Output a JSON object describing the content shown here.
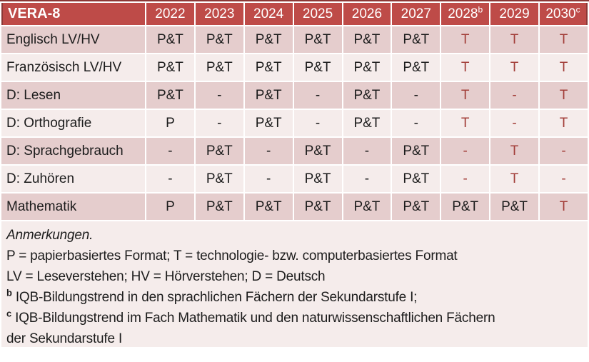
{
  "table": {
    "title": "VERA-8",
    "columns": [
      {
        "label": "2022",
        "sup": ""
      },
      {
        "label": "2023",
        "sup": ""
      },
      {
        "label": "2024",
        "sup": ""
      },
      {
        "label": "2025",
        "sup": ""
      },
      {
        "label": "2026",
        "sup": ""
      },
      {
        "label": "2027",
        "sup": ""
      },
      {
        "label": "2028",
        "sup": "b"
      },
      {
        "label": "2029",
        "sup": ""
      },
      {
        "label": "2030",
        "sup": "c"
      }
    ],
    "rows": [
      {
        "label": "Englisch LV/HV",
        "cells": [
          {
            "v": "P&T"
          },
          {
            "v": "P&T"
          },
          {
            "v": "P&T"
          },
          {
            "v": "P&T"
          },
          {
            "v": "P&T"
          },
          {
            "v": "P&T"
          },
          {
            "v": "T",
            "red": true
          },
          {
            "v": "T",
            "red": true
          },
          {
            "v": "T",
            "red": true
          }
        ]
      },
      {
        "label": "Französisch LV/HV",
        "cells": [
          {
            "v": "P&T"
          },
          {
            "v": "P&T"
          },
          {
            "v": "P&T"
          },
          {
            "v": "P&T"
          },
          {
            "v": "P&T"
          },
          {
            "v": "P&T"
          },
          {
            "v": "T",
            "red": true
          },
          {
            "v": "T",
            "red": true
          },
          {
            "v": "T",
            "red": true
          }
        ]
      },
      {
        "label": "D: Lesen",
        "cells": [
          {
            "v": "P&T"
          },
          {
            "v": "-"
          },
          {
            "v": "P&T"
          },
          {
            "v": "-"
          },
          {
            "v": "P&T"
          },
          {
            "v": "-"
          },
          {
            "v": "T",
            "red": true
          },
          {
            "v": "-",
            "red": true
          },
          {
            "v": "T",
            "red": true
          }
        ]
      },
      {
        "label": "D: Orthografie",
        "cells": [
          {
            "v": "P"
          },
          {
            "v": "-"
          },
          {
            "v": "P&T"
          },
          {
            "v": "-"
          },
          {
            "v": "P&T"
          },
          {
            "v": "-"
          },
          {
            "v": "T",
            "red": true
          },
          {
            "v": "-",
            "red": true
          },
          {
            "v": "T",
            "red": true
          }
        ]
      },
      {
        "label": "D: Sprachgebrauch",
        "cells": [
          {
            "v": "-"
          },
          {
            "v": "P&T"
          },
          {
            "v": "-"
          },
          {
            "v": "P&T"
          },
          {
            "v": "-"
          },
          {
            "v": "P&T"
          },
          {
            "v": "-",
            "red": true
          },
          {
            "v": "T",
            "red": true
          },
          {
            "v": "-",
            "red": true
          }
        ]
      },
      {
        "label": "D: Zuhören",
        "cells": [
          {
            "v": "-"
          },
          {
            "v": "P&T"
          },
          {
            "v": "-"
          },
          {
            "v": "P&T"
          },
          {
            "v": "-"
          },
          {
            "v": "P&T"
          },
          {
            "v": "-",
            "red": true
          },
          {
            "v": "T",
            "red": true
          },
          {
            "v": "-",
            "red": true
          }
        ]
      },
      {
        "label": "Mathematik",
        "cells": [
          {
            "v": "P"
          },
          {
            "v": "P&T"
          },
          {
            "v": "P&T"
          },
          {
            "v": "P&T"
          },
          {
            "v": "P&T"
          },
          {
            "v": "P&T"
          },
          {
            "v": "P&T"
          },
          {
            "v": "P&T"
          },
          {
            "v": "T",
            "red": true
          }
        ]
      }
    ]
  },
  "notes": {
    "heading": "Anmerkungen.",
    "lines": [
      {
        "sup": "",
        "text": "P = papierbasiertes Format; T = technologie- bzw. computerbasiertes Format"
      },
      {
        "sup": "",
        "text": "LV = Leseverstehen; HV = Hörverstehen; D = Deutsch"
      },
      {
        "sup": "b",
        "text": "IQB-Bildungstrend in den sprachlichen Fächern der Sekundarstufe I;"
      },
      {
        "sup": "c",
        "text": "IQB-Bildungstrend im Fach Mathematik und den naturwissenschaftlichen Fächern der Sekundarstufe I"
      }
    ]
  },
  "colors": {
    "header_bg": "#BE4B48",
    "header_border": "#8C3836",
    "band_dark": "#E5CDCD",
    "band_light": "#F5ECEB",
    "red_text": "#A23E39",
    "header_text": "#FFFFFF",
    "body_text": "#1C1C1C"
  }
}
